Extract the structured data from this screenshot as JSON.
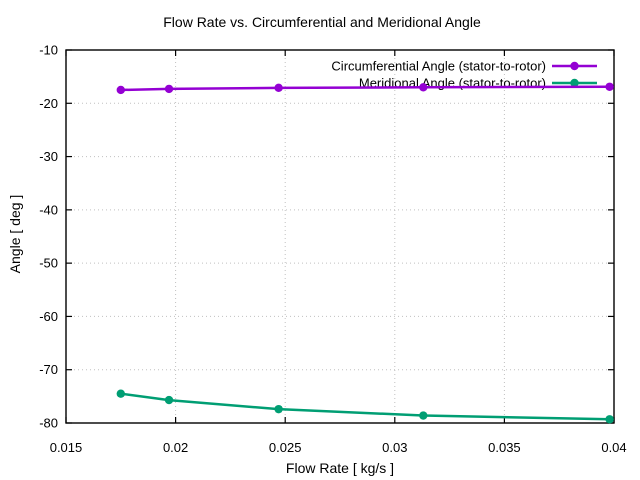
{
  "chart_data": {
    "type": "line",
    "title": "Flow Rate vs. Circumferential and Meridional Angle",
    "xlabel": "Flow Rate [ kg/s ]",
    "ylabel": "Angle [ deg ]",
    "xlim": [
      0.015,
      0.04
    ],
    "ylim": [
      -80,
      -10
    ],
    "xtick_values": [
      0.015,
      0.02,
      0.025,
      0.03,
      0.035,
      0.04
    ],
    "xtick_labels": [
      "0.015",
      "0.02",
      "0.025",
      "0.03",
      "0.035",
      "0.04"
    ],
    "ytick_values": [
      -80,
      -70,
      -60,
      -50,
      -40,
      -30,
      -20,
      -10
    ],
    "ytick_labels": [
      "-80",
      "-70",
      "-60",
      "-50",
      "-40",
      "-30",
      "-20",
      "-10"
    ],
    "grid": "dotted",
    "legend_position": "top-right-inside",
    "x": [
      0.0175,
      0.0197,
      0.0247,
      0.0313,
      0.0398
    ],
    "series": [
      {
        "name": "Circumferential Angle (stator-to-rotor)",
        "color": "#9400d3",
        "marker": "circle",
        "values": [
          -17.5,
          -17.3,
          -17.1,
          -17.0,
          -16.9
        ]
      },
      {
        "name": "Meridional Angle (stator-to-rotor)",
        "color": "#009e73",
        "marker": "circle",
        "values": [
          -74.5,
          -75.7,
          -77.4,
          -78.6,
          -79.3
        ]
      }
    ],
    "colors": {
      "background": "#ffffff",
      "border": "#000000",
      "grid": "#c0c0c0",
      "text": "#000000"
    }
  }
}
